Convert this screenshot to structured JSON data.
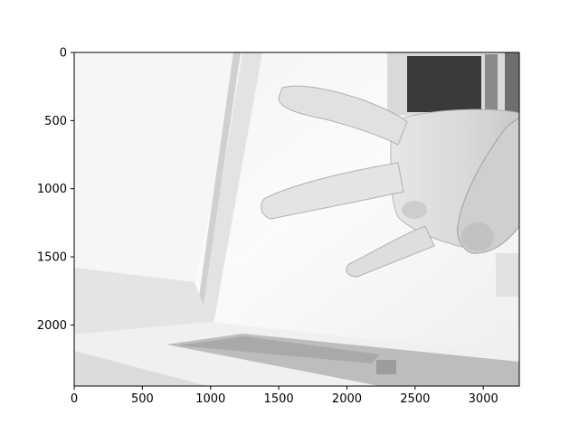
{
  "image": {
    "description_kind": "grayscale photo of a hand with spread fingers in front of a bright window, shown in an axes frame",
    "colors": {
      "background": "#ffffff",
      "axes_edge": "#000000",
      "photo_bright": "#f4f4f4",
      "photo_mid": "#d8d8d8",
      "photo_dark": "#3a3a3a"
    }
  },
  "axes": {
    "x_range": [
      0,
      3264
    ],
    "y_range": [
      0,
      2448
    ],
    "y_inverted": true,
    "x_ticks": [
      {
        "value": 0,
        "label": "0"
      },
      {
        "value": 500,
        "label": "500"
      },
      {
        "value": 1000,
        "label": "1000"
      },
      {
        "value": 1500,
        "label": "1500"
      },
      {
        "value": 2000,
        "label": "2000"
      },
      {
        "value": 2500,
        "label": "2500"
      },
      {
        "value": 3000,
        "label": "3000"
      }
    ],
    "y_ticks": [
      {
        "value": 0,
        "label": "0"
      },
      {
        "value": 500,
        "label": "500"
      },
      {
        "value": 1000,
        "label": "1000"
      },
      {
        "value": 1500,
        "label": "1500"
      },
      {
        "value": 2000,
        "label": "2000"
      }
    ]
  }
}
